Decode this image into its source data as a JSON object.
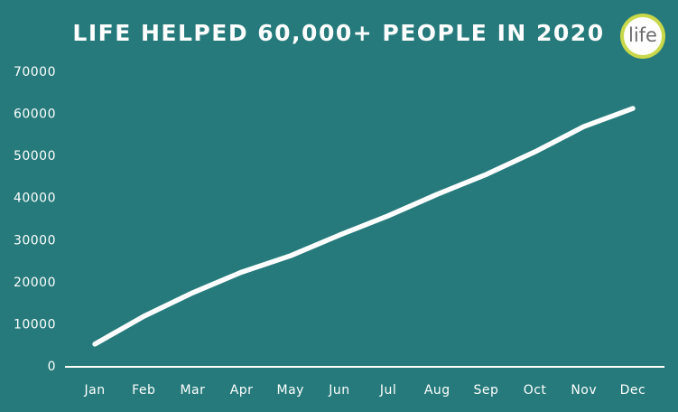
{
  "chart_data": {
    "type": "line",
    "title": "LIFE HELPED 60,000+ PEOPLE IN 2020",
    "logo_text": "life",
    "categories": [
      "Jan",
      "Feb",
      "Mar",
      "Apr",
      "May",
      "Jun",
      "Jul",
      "Aug",
      "Sep",
      "Oct",
      "Nov",
      "Dec"
    ],
    "values": [
      5400,
      12000,
      17600,
      22500,
      26400,
      31300,
      35900,
      41000,
      45700,
      51100,
      57100,
      61400
    ],
    "color": "#ffffff",
    "ylim": [
      0,
      70000
    ],
    "yticks": [
      0,
      10000,
      20000,
      30000,
      40000,
      50000,
      60000,
      70000
    ],
    "grid": false
  }
}
